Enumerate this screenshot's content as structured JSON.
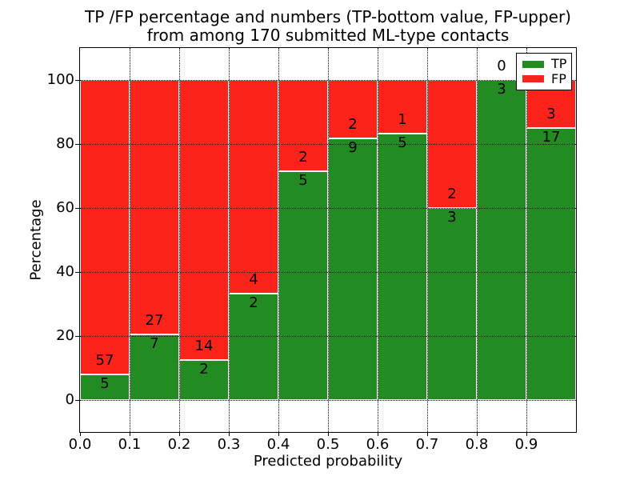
{
  "figure": {
    "title_line1": "TP /FP percentage and numbers (TP-bottom value, FP-upper)",
    "title_line2": "from among 170 submitted ML-type contacts"
  },
  "chart_data": {
    "type": "bar",
    "stacked": true,
    "normalized_to_percent": true,
    "title": "TP /FP percentage and numbers (TP-bottom value, FP-upper) from among 170 submitted ML-type contacts",
    "xlabel": "Predicted probability",
    "ylabel": "Percentage",
    "total_contacts": 170,
    "bins": [
      {
        "range": [
          0.0,
          0.1
        ],
        "tp": 5,
        "fp": 57,
        "tp_pct": 8.06
      },
      {
        "range": [
          0.1,
          0.2
        ],
        "tp": 7,
        "fp": 27,
        "tp_pct": 20.59
      },
      {
        "range": [
          0.2,
          0.3
        ],
        "tp": 2,
        "fp": 14,
        "tp_pct": 12.5
      },
      {
        "range": [
          0.3,
          0.4
        ],
        "tp": 2,
        "fp": 4,
        "tp_pct": 33.33
      },
      {
        "range": [
          0.4,
          0.5
        ],
        "tp": 5,
        "fp": 2,
        "tp_pct": 71.43
      },
      {
        "range": [
          0.5,
          0.6
        ],
        "tp": 9,
        "fp": 2,
        "tp_pct": 81.82
      },
      {
        "range": [
          0.6,
          0.7
        ],
        "tp": 5,
        "fp": 1,
        "tp_pct": 83.33
      },
      {
        "range": [
          0.7,
          0.8
        ],
        "tp": 3,
        "fp": 2,
        "tp_pct": 60.0
      },
      {
        "range": [
          0.8,
          0.9
        ],
        "tp": 3,
        "fp": 0,
        "tp_pct": 100.0
      },
      {
        "range": [
          0.9,
          1.0
        ],
        "tp": 17,
        "fp": 3,
        "tp_pct": 85.0
      }
    ],
    "xticks": [
      "0.0",
      "0.1",
      "0.2",
      "0.3",
      "0.4",
      "0.5",
      "0.6",
      "0.7",
      "0.8",
      "0.9"
    ],
    "yticks": [
      0,
      20,
      40,
      60,
      80,
      100
    ],
    "xlim": [
      0.0,
      1.0
    ],
    "ylim": [
      -10,
      110
    ],
    "grid": "dotted",
    "legend": {
      "position": "upper-right",
      "entries": [
        {
          "label": "TP",
          "color": "#228b22"
        },
        {
          "label": "FP",
          "color": "#fc231a"
        }
      ]
    },
    "colors": {
      "tp": "#228b22",
      "fp": "#fc231a",
      "bar_edge": "#ffffff",
      "grid": "#000000",
      "frame": "#000000",
      "background": "#ffffff"
    }
  }
}
